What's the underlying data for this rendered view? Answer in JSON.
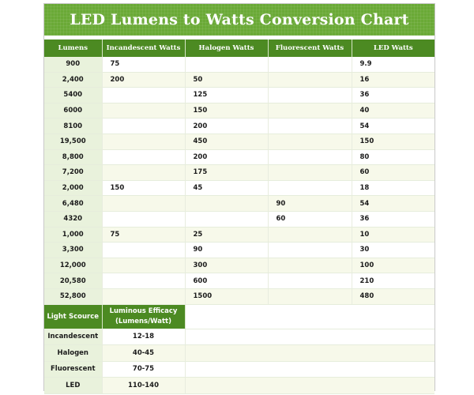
{
  "title": "LED Lumens to Watts Conversion Chart",
  "colors": {
    "header_green": "#4c8a22",
    "title_green": "#6aa936",
    "lumens_col": "#e9f2dc",
    "row_alt": "#f7f9ea"
  },
  "conversion": {
    "headers": [
      "Lumens",
      "Incandescent Watts",
      "Halogen Watts",
      "Fluorescent Watts",
      "LED Watts"
    ],
    "rows": [
      [
        "900",
        "75",
        "",
        "",
        "9.9"
      ],
      [
        "2,400",
        "200",
        "50",
        "",
        "16"
      ],
      [
        "5400",
        "",
        "125",
        "",
        "36"
      ],
      [
        "6000",
        "",
        "150",
        "",
        "40"
      ],
      [
        "8100",
        "",
        "200",
        "",
        "54"
      ],
      [
        "19,500",
        "",
        "450",
        "",
        "150"
      ],
      [
        "8,800",
        "",
        "200",
        "",
        "80"
      ],
      [
        "7,200",
        "",
        "175",
        "",
        "60"
      ],
      [
        "2,000",
        "150",
        "45",
        "",
        "18"
      ],
      [
        "6,480",
        "",
        "",
        "90",
        "54"
      ],
      [
        "4320",
        "",
        "",
        "60",
        "36"
      ],
      [
        "1,000",
        "75",
        "25",
        "",
        "10"
      ],
      [
        "3,300",
        "",
        "90",
        "",
        "30"
      ],
      [
        "12,000",
        "",
        "300",
        "",
        "100"
      ],
      [
        "20,580",
        "",
        "600",
        "",
        "210"
      ],
      [
        "52,800",
        "",
        "1500",
        "",
        "480"
      ]
    ]
  },
  "efficacy": {
    "header_source": "Light Scource",
    "header_efficacy_line1": "Luminous Efficacy",
    "header_efficacy_line2": "(Lumens/Watt)",
    "rows": [
      [
        "Incandescent",
        "12-18"
      ],
      [
        "Halogen",
        "40-45"
      ],
      [
        "Fluorescent",
        "70-75"
      ],
      [
        "LED",
        "110-140"
      ]
    ]
  }
}
